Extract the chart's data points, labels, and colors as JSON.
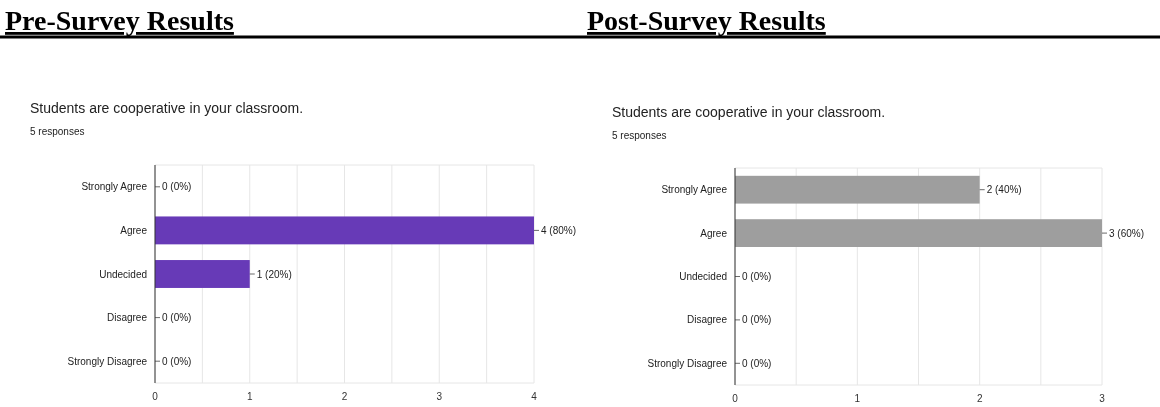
{
  "chart_data": [
    {
      "type": "bar",
      "orientation": "horizontal",
      "title": "Pre-Survey Results",
      "subtitle": "Students are cooperative in your classroom.",
      "annotations": [
        "5 responses"
      ],
      "categories": [
        "Strongly Agree",
        "Agree",
        "Undecided",
        "Disagree",
        "Strongly Disagree"
      ],
      "values": [
        0,
        4,
        1,
        0,
        0
      ],
      "value_labels": [
        "0 (0%)",
        "4 (80%)",
        "1 (20%)",
        "0 (0%)",
        "0 (0%)"
      ],
      "color": "#673ab7",
      "xlim": [
        0,
        4
      ],
      "xticks": [
        0,
        {
          "value": 0.5,
          "label": null
        },
        1,
        {
          "value": 1.5,
          "label": null
        },
        2,
        {
          "value": 2.5,
          "label": null
        },
        3,
        {
          "value": 3.5,
          "label": null
        },
        4
      ],
      "grid": "x"
    },
    {
      "type": "bar",
      "orientation": "horizontal",
      "title": "Post-Survey Results",
      "subtitle": "Students are cooperative in your classroom.",
      "annotations": [
        "5 responses"
      ],
      "categories": [
        "Strongly Agree",
        "Agree",
        "Undecided",
        "Disagree",
        "Strongly Disagree"
      ],
      "values": [
        2,
        3,
        0,
        0,
        0
      ],
      "value_labels": [
        "2 (40%)",
        "3 (60%)",
        "0 (0%)",
        "0 (0%)",
        "0 (0%)"
      ],
      "color": "#9e9e9e",
      "xlim": [
        0,
        3
      ],
      "xticks": [
        0,
        {
          "value": 0.5,
          "label": null
        },
        1,
        {
          "value": 1.5,
          "label": null
        },
        2,
        {
          "value": 2.5,
          "label": null
        },
        3
      ],
      "grid": "x"
    }
  ]
}
